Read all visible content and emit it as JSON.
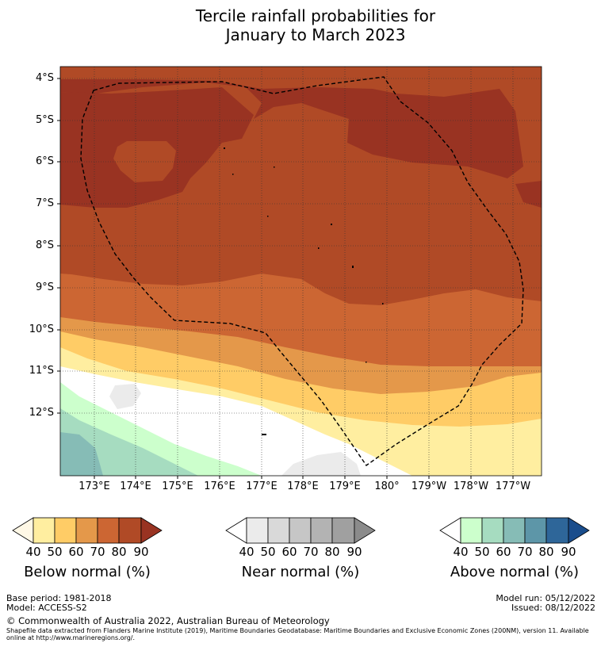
{
  "title": {
    "line1": "Tercile rainfall probabilities for",
    "line2": "January to March 2023"
  },
  "map": {
    "latitude_labels": [
      "4°S",
      "5°S",
      "6°S",
      "7°S",
      "8°S",
      "9°S",
      "10°S",
      "11°S",
      "12°S"
    ],
    "longitude_labels": [
      "173°E",
      "174°E",
      "175°E",
      "176°E",
      "177°E",
      "178°E",
      "179°E",
      "180°",
      "179°W",
      "178°W",
      "177°W"
    ],
    "boundary": "Tuvalu exclusive economic zone (200NM)",
    "dominant_category": "Below normal"
  },
  "legends": {
    "below": {
      "title": "Below normal (%)",
      "ticks": [
        "40",
        "50",
        "60",
        "70",
        "80",
        "90"
      ],
      "colors": [
        "#fff8e6",
        "#ffeea0",
        "#ffcc66",
        "#e4984a",
        "#cc6633",
        "#b04a26",
        "#993322"
      ]
    },
    "near": {
      "title": "Near normal (%)",
      "ticks": [
        "40",
        "50",
        "60",
        "70",
        "80",
        "90"
      ],
      "colors": [
        "#ffffff",
        "#ebebeb",
        "#d9d9d9",
        "#c6c6c6",
        "#b3b3b3",
        "#a0a0a0",
        "#8b8b8b"
      ]
    },
    "above": {
      "title": "Above normal (%)",
      "ticks": [
        "40",
        "50",
        "60",
        "70",
        "80",
        "90"
      ],
      "colors": [
        "#ffffff",
        "#ccffcc",
        "#a6dcc0",
        "#86bcb6",
        "#5d96a8",
        "#2e6699",
        "#1a4d8c"
      ]
    }
  },
  "footer": {
    "base_period": "Base period: 1981-2018",
    "model": "Model: ACCESS-S2",
    "model_run": "Model run: 05/12/2022",
    "issued": "Issued: 08/12/2022",
    "copyright": "© Commonwealth of Australia 2022, Australian Bureau of Meteorology",
    "shapefile_note": "Shapefile data extracted from Flanders Marine Institute (2019), Maritime Boundaries Geodatabase: Maritime Boundaries and Exclusive Economic Zones (200NM), version 11. Available online at http://www.marineregions.org/."
  }
}
